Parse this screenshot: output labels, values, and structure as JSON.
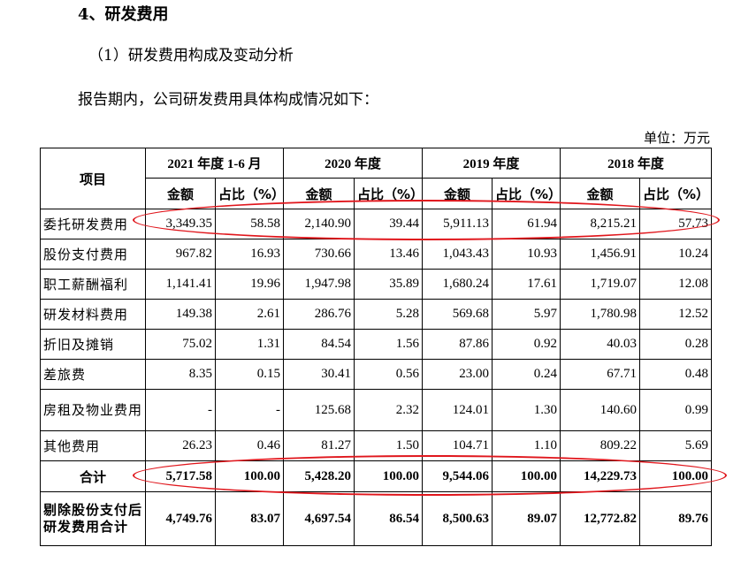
{
  "heading": "4、研发费用",
  "subheading": "（1）研发费用构成及变动分析",
  "intro": "报告期内，公司研发费用具体构成情况如下：",
  "unit": "单位：万元",
  "table": {
    "item_header": "项目",
    "periods": [
      "2021 年度 1-6 月",
      "2020 年度",
      "2019 年度",
      "2018 年度"
    ],
    "amount_header": "金额",
    "ratio_header": "占比（%）",
    "rows": [
      {
        "name": "委托研发费用",
        "values": [
          "3,349.35",
          "58.58",
          "2,140.90",
          "39.44",
          "5,911.13",
          "61.94",
          "8,215.21",
          "57.73"
        ]
      },
      {
        "name": "股份支付费用",
        "values": [
          "967.82",
          "16.93",
          "730.66",
          "13.46",
          "1,043.43",
          "10.93",
          "1,456.91",
          "10.24"
        ]
      },
      {
        "name": "职工薪酬福利",
        "values": [
          "1,141.41",
          "19.96",
          "1,947.98",
          "35.89",
          "1,680.24",
          "17.61",
          "1,719.07",
          "12.08"
        ]
      },
      {
        "name": "研发材料费用",
        "values": [
          "149.38",
          "2.61",
          "286.76",
          "5.28",
          "569.68",
          "5.97",
          "1,780.98",
          "12.52"
        ]
      },
      {
        "name": "折旧及摊销",
        "values": [
          "75.02",
          "1.31",
          "84.54",
          "1.56",
          "87.86",
          "0.92",
          "40.03",
          "0.28"
        ]
      },
      {
        "name": "差旅费",
        "values": [
          "8.35",
          "0.15",
          "30.41",
          "0.56",
          "23.00",
          "0.24",
          "67.71",
          "0.48"
        ]
      },
      {
        "name": "房租及物业费用",
        "values": [
          "-",
          "-",
          "125.68",
          "2.32",
          "124.01",
          "1.30",
          "140.60",
          "0.99"
        ]
      },
      {
        "name": "其他费用",
        "values": [
          "26.23",
          "0.46",
          "81.27",
          "1.50",
          "104.71",
          "1.10",
          "809.22",
          "5.69"
        ]
      }
    ],
    "total": {
      "name": "合计",
      "values": [
        "5,717.58",
        "100.00",
        "5,428.20",
        "100.00",
        "9,544.06",
        "100.00",
        "14,229.73",
        "100.00"
      ]
    },
    "excl": {
      "name": "剔除股份支付后研发费用合计",
      "values": [
        "4,749.76",
        "83.07",
        "4,697.54",
        "86.54",
        "8,500.63",
        "89.07",
        "12,772.82",
        "89.76"
      ]
    }
  },
  "highlight_color": "#e0161c"
}
